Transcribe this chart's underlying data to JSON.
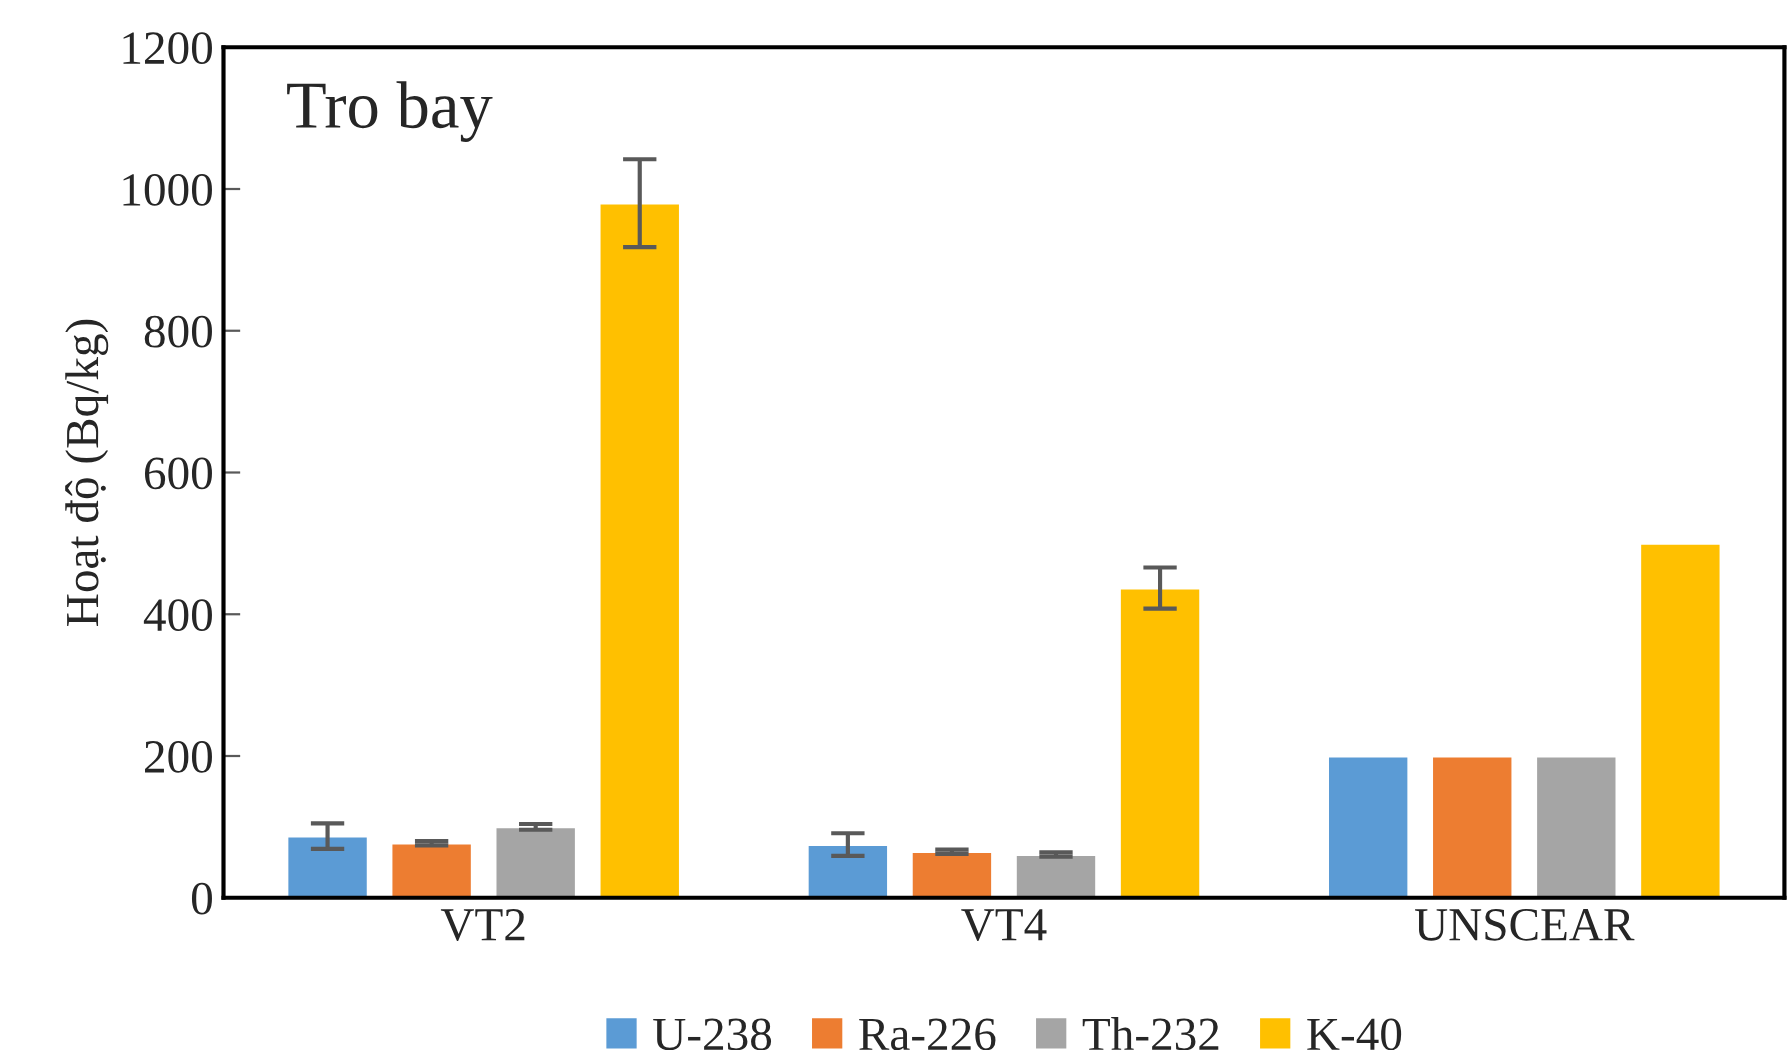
{
  "chart_data": {
    "type": "bar",
    "title": "Tro bay",
    "ylabel": "Hoạt độ (Bq/kg)",
    "categories": [
      "VT2",
      "VT4",
      "UNSCEAR"
    ],
    "series": [
      {
        "name": "U-238",
        "color": "#5b9bd5",
        "values": [
          87,
          75,
          200
        ],
        "errors": [
          18,
          16,
          null
        ]
      },
      {
        "name": "Ra-226",
        "color": "#ed7d31",
        "values": [
          77,
          65,
          200
        ],
        "errors": [
          3,
          3,
          null
        ]
      },
      {
        "name": "Th-232",
        "color": "#a5a5a5",
        "values": [
          100,
          61,
          200
        ],
        "errors": [
          4,
          3,
          null
        ]
      },
      {
        "name": "K-40",
        "color": "#ffc000",
        "values": [
          980,
          437,
          500
        ],
        "errors": [
          62,
          29,
          null
        ]
      }
    ],
    "ylim": [
      0,
      1200
    ],
    "yticks": [
      0,
      200,
      400,
      600,
      800,
      1000,
      1200
    ],
    "grid": false,
    "legend": "bottom"
  }
}
